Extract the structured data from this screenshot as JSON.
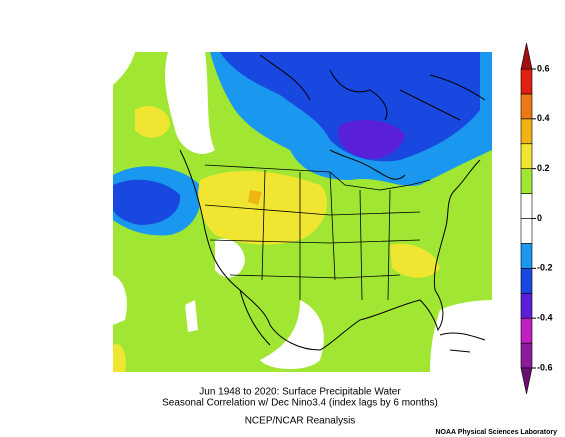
{
  "map": {
    "title": "Jun 1948 to 2020: Surface Precipitable Water",
    "subtitle": "Seasonal Correlation w/ Dec Nino3.4 (index lags by 6 months)",
    "source": "NCEP/NCAR Reanalysis",
    "credit": "NOAA Physical Sciences Laboratory",
    "colorbar": {
      "lim": [
        -0.6,
        0.6
      ],
      "ticks": [
        0.6,
        0.4,
        0.2,
        0,
        -0.2,
        -0.4,
        -0.6
      ],
      "colors": [
        "#8c1c9c",
        "#c21fc2",
        "#5a20d8",
        "#1848e0",
        "#1a98f0",
        "#ffffff",
        "#ffffff",
        "#a0e632",
        "#f0e632",
        "#f0b414",
        "#f07814",
        "#e02010"
      ],
      "over_color": "#a01010",
      "under_color": "#6a1070"
    }
  }
}
